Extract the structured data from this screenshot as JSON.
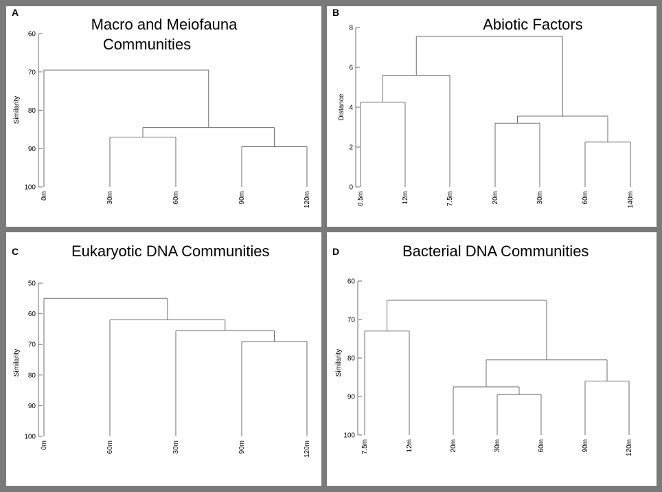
{
  "figure": {
    "panels": [
      {
        "label": "A",
        "title_lines": [
          "Macro and Meiofauna",
          "Communities"
        ],
        "chart_data": {
          "type": "dendrogram",
          "title": "Macro and Meiofauna Communities",
          "ylabel": "Similarity",
          "ylim": [
            60,
            100
          ],
          "y_ticks": [
            60,
            70,
            80,
            90,
            100
          ],
          "leaves": [
            "0m",
            "30m",
            "60m",
            "90m",
            "120m"
          ],
          "merges": [
            {
              "children": [
                1,
                2
              ],
              "height": 87
            },
            {
              "children": [
                3,
                4
              ],
              "height": 89.5
            },
            {
              "children": [
                5,
                6
              ],
              "height": 84.5
            },
            {
              "children": [
                0,
                7
              ],
              "height": 69.5
            }
          ]
        }
      },
      {
        "label": "B",
        "title_lines": [
          "Abiotic Factors"
        ],
        "chart_data": {
          "type": "dendrogram",
          "title": "Abiotic Factors",
          "ylabel": "Distance",
          "ylim": [
            8,
            0
          ],
          "y_ticks": [
            8,
            6,
            4,
            2,
            0
          ],
          "leaves": [
            "0.5m",
            "12m",
            "7.5m",
            "20m",
            "30m",
            "60m",
            "140m"
          ],
          "merges": [
            {
              "children": [
                0,
                1
              ],
              "height": 4.25
            },
            {
              "children": [
                7,
                2
              ],
              "height": 5.6
            },
            {
              "children": [
                3,
                4
              ],
              "height": 3.2
            },
            {
              "children": [
                5,
                6
              ],
              "height": 2.25
            },
            {
              "children": [
                9,
                10
              ],
              "height": 3.55
            },
            {
              "children": [
                8,
                11
              ],
              "height": 7.55
            }
          ]
        }
      },
      {
        "label": "C",
        "title_lines": [
          "Eukaryotic DNA Communities"
        ],
        "chart_data": {
          "type": "dendrogram",
          "title": "Eukaryotic DNA Communities",
          "ylabel": "Similarity",
          "ylim": [
            50,
            100
          ],
          "y_ticks": [
            50,
            60,
            70,
            80,
            90,
            100
          ],
          "leaves": [
            "0m",
            "60m",
            "30m",
            "90m",
            "120m"
          ],
          "merges": [
            {
              "children": [
                3,
                4
              ],
              "height": 69
            },
            {
              "children": [
                2,
                5
              ],
              "height": 65.5
            },
            {
              "children": [
                1,
                6
              ],
              "height": 62
            },
            {
              "children": [
                0,
                7
              ],
              "height": 55
            }
          ]
        }
      },
      {
        "label": "D",
        "title_lines": [
          "Bacterial DNA Communities"
        ],
        "chart_data": {
          "type": "dendrogram",
          "title": "Bacterial DNA Communities",
          "ylabel": "Similarity",
          "ylim": [
            60,
            100
          ],
          "y_ticks": [
            60,
            70,
            80,
            90,
            100
          ],
          "leaves": [
            "7.5m",
            "12m",
            "20m",
            "30m",
            "60m",
            "90m",
            "120m"
          ],
          "merges": [
            {
              "children": [
                0,
                1
              ],
              "height": 73
            },
            {
              "children": [
                3,
                4
              ],
              "height": 89.5
            },
            {
              "children": [
                2,
                8
              ],
              "height": 87.5
            },
            {
              "children": [
                5,
                6
              ],
              "height": 86
            },
            {
              "children": [
                9,
                10
              ],
              "height": 80.5
            },
            {
              "children": [
                7,
                11
              ],
              "height": 65
            }
          ]
        }
      }
    ]
  }
}
